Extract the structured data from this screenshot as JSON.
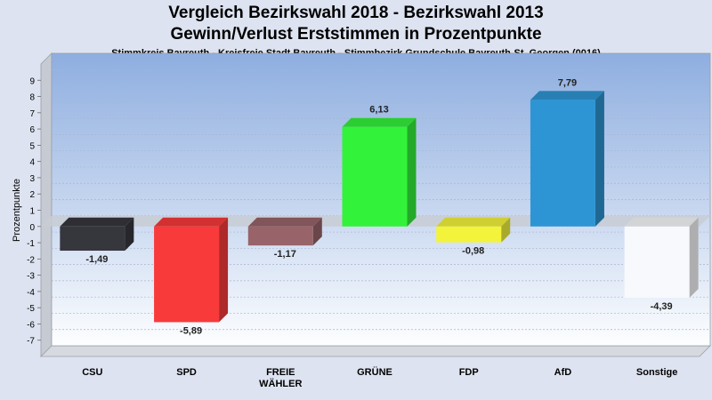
{
  "title_line1": "Vergleich Bezirkswahl 2018 - Bezirkswahl 2013",
  "title_line2": "Gewinn/Verlust Erststimmen in Prozentpunkte",
  "subtitle": "Stimmkreis Bayreuth - Kreisfreie Stadt Bayreuth - Stimmbezirk Grundschule Bayreuth-St. Georgen (0016)",
  "chart_data": {
    "type": "bar",
    "ylabel": "Prozentpunkte",
    "ylim": [
      -8,
      10
    ],
    "yticks": [
      -7,
      -6,
      -5,
      -4,
      -3,
      -2,
      -1,
      0,
      1,
      2,
      3,
      4,
      5,
      6,
      7,
      8,
      9
    ],
    "grid": true,
    "categories": [
      "CSU",
      "SPD",
      "FREIE WÄHLER",
      "GRÜNE",
      "FDP",
      "AfD",
      "Sonstige"
    ],
    "category_lines": [
      [
        "CSU"
      ],
      [
        "SPD"
      ],
      [
        "FREIE",
        "WÄHLER"
      ],
      [
        "GRÜNE"
      ],
      [
        "FDP"
      ],
      [
        "AfD"
      ],
      [
        "Sonstige"
      ]
    ],
    "values": [
      -1.49,
      -5.89,
      -1.17,
      6.13,
      -0.98,
      7.79,
      -4.39
    ],
    "value_labels": [
      "-1,49",
      "-5,89",
      "-1,17",
      "6,13",
      "-0,98",
      "7,79",
      "-4,39"
    ],
    "colors": [
      "#36363d",
      "#f83a3a",
      "#98646a",
      "#33f23a",
      "#f3f33c",
      "#2e95d4",
      "#f8f9fc"
    ]
  }
}
